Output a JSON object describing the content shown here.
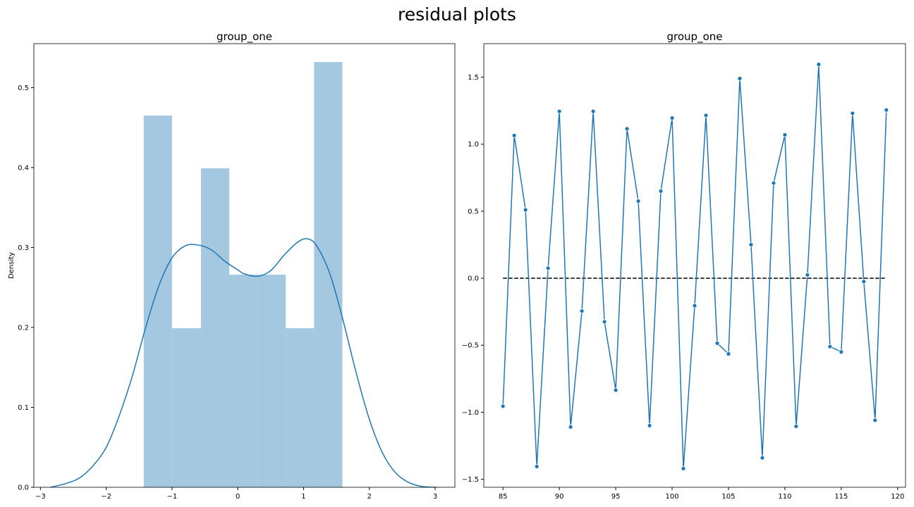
{
  "figure": {
    "title": "residual plots"
  },
  "chart_data": [
    {
      "type": "bar",
      "title": "group_one",
      "xlabel": "",
      "ylabel": "Density",
      "xlim": [
        -3.1,
        3.3
      ],
      "ylim": [
        0,
        0.555
      ],
      "xticks": [
        -3,
        -2,
        -1,
        0,
        1,
        2,
        3
      ],
      "yticks": [
        0.0,
        0.1,
        0.2,
        0.3,
        0.4,
        0.5
      ],
      "histogram": {
        "bin_edges": [
          -1.43,
          -1.0,
          -0.56,
          -0.13,
          0.3,
          0.73,
          1.16,
          1.59
        ],
        "density": [
          0.465,
          0.199,
          0.399,
          0.266,
          0.266,
          0.199,
          0.532
        ],
        "color": "#a4c8e0"
      },
      "kde": {
        "color": "#1f77b4",
        "x": [
          -2.85,
          -2.6,
          -2.4,
          -2.2,
          -2.0,
          -1.8,
          -1.6,
          -1.4,
          -1.2,
          -1.0,
          -0.8,
          -0.6,
          -0.4,
          -0.2,
          0.0,
          0.1,
          0.3,
          0.5,
          0.7,
          0.9,
          1.05,
          1.2,
          1.4,
          1.6,
          1.8,
          2.0,
          2.2,
          2.4,
          2.6,
          2.8,
          3.02
        ],
        "y": [
          0.0,
          0.005,
          0.012,
          0.027,
          0.05,
          0.09,
          0.14,
          0.2,
          0.252,
          0.287,
          0.302,
          0.303,
          0.297,
          0.283,
          0.272,
          0.267,
          0.264,
          0.271,
          0.29,
          0.306,
          0.311,
          0.302,
          0.267,
          0.209,
          0.143,
          0.085,
          0.043,
          0.018,
          0.006,
          0.001,
          0.0
        ]
      }
    },
    {
      "type": "line",
      "title": "group_one",
      "xlabel": "",
      "ylabel": "",
      "xlim": [
        83.3,
        120.7
      ],
      "ylim": [
        -1.56,
        1.75
      ],
      "xticks": [
        85,
        90,
        95,
        100,
        105,
        110,
        115,
        120
      ],
      "yticks": [
        -1.5,
        -1.0,
        -0.5,
        0.0,
        0.5,
        1.0,
        1.5
      ],
      "color": "#1f77b4",
      "x": [
        85,
        86,
        87,
        88,
        89,
        90,
        91,
        92,
        93,
        94,
        95,
        96,
        97,
        98,
        99,
        100,
        101,
        102,
        103,
        104,
        105,
        106,
        107,
        108,
        109,
        110,
        111,
        112,
        113,
        114,
        115,
        116,
        117,
        118,
        119
      ],
      "y": [
        -0.955,
        1.065,
        0.51,
        -1.405,
        0.075,
        1.245,
        -1.11,
        -0.245,
        1.245,
        -0.325,
        -0.835,
        1.115,
        0.575,
        -1.1,
        0.65,
        1.195,
        -1.42,
        -0.205,
        1.215,
        -0.485,
        -0.565,
        1.49,
        0.25,
        -1.34,
        0.71,
        1.07,
        -1.105,
        0.025,
        1.595,
        -0.51,
        -0.55,
        1.23,
        -0.025,
        -1.06,
        1.255
      ],
      "reference_line": {
        "y": 0.0,
        "x_range": [
          85,
          119
        ],
        "style": "dashed",
        "color": "#000000"
      }
    }
  ]
}
